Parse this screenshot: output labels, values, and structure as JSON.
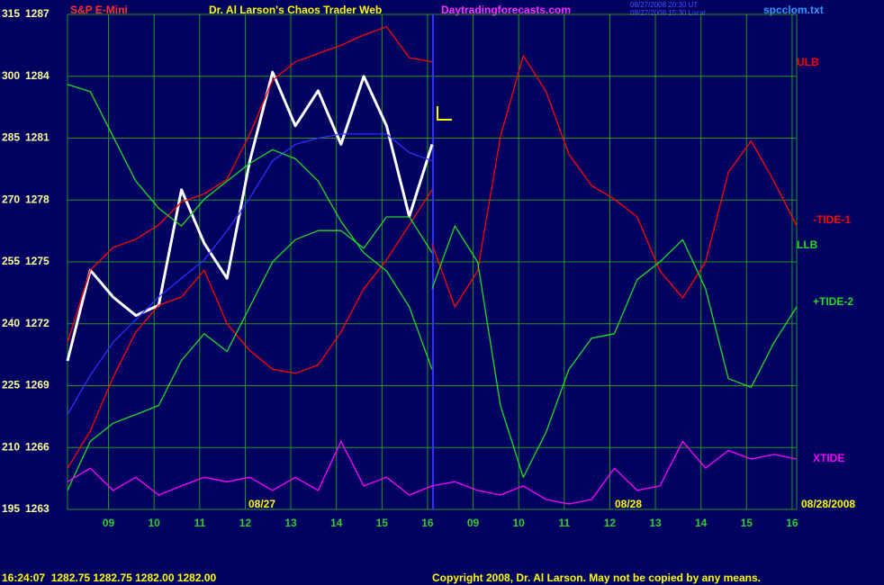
{
  "chart_data": {
    "type": "line",
    "title": "Dr. Al Larson's Chaos Trader Web",
    "instrument": "S&P E-Mini",
    "website": "Daytradingforecasts.com",
    "timestamps": [
      "08/27/2008 20:30 UT",
      "08/27/2008 15:30 Local"
    ],
    "data_file": "spcclom.txt",
    "annotations": [
      "08/27",
      "08/28",
      "08/28/2008"
    ],
    "quote_line": "16:24:07  1282.75 1282.75 1282.00 1282.00",
    "copyright": "Copyright 2008, Dr. Al Larson. May not be copied by any means.",
    "grid": true,
    "xlim": [
      -0.9,
      15.1
    ],
    "xticks": [
      {
        "value": 0,
        "label": "09"
      },
      {
        "value": 1,
        "label": "10"
      },
      {
        "value": 2,
        "label": "11"
      },
      {
        "value": 3,
        "label": "12"
      },
      {
        "value": 4,
        "label": "13"
      },
      {
        "value": 5,
        "label": "14"
      },
      {
        "value": 6,
        "label": "15"
      },
      {
        "value": 7,
        "label": "16"
      },
      {
        "value": 8,
        "label": "09"
      },
      {
        "value": 9,
        "label": "10"
      },
      {
        "value": 10,
        "label": "11"
      },
      {
        "value": 11,
        "label": "12"
      },
      {
        "value": 12,
        "label": "13"
      },
      {
        "value": 13,
        "label": "14"
      },
      {
        "value": 14,
        "label": "15"
      },
      {
        "value": 15,
        "label": "16"
      }
    ],
    "ylim": [
      195,
      315
    ],
    "yticks": [
      195,
      210,
      225,
      240,
      255,
      270,
      285,
      300,
      315
    ],
    "y2lim": [
      1263,
      1287
    ],
    "y2ticks": [
      1263,
      1266,
      1269,
      1272,
      1275,
      1278,
      1281,
      1284,
      1287
    ],
    "x": [
      -0.9,
      -0.4,
      0.1,
      0.6,
      1.1,
      1.6,
      2.1,
      2.6,
      3.1,
      3.6,
      4.1,
      4.6,
      5.1,
      5.6,
      6.1,
      6.6,
      7.1,
      7.6,
      8.1,
      8.6,
      9.1,
      9.6,
      10.1,
      10.6,
      11.1,
      11.6,
      12.1,
      12.6,
      13.1,
      13.6,
      14.1,
      14.6,
      15.1
    ],
    "series": [
      {
        "color": "#ffffff",
        "axis": "y2",
        "values": [
          1270.2,
          1274.6,
          1273.3,
          1272.4,
          1272.9,
          1278.5,
          1275.9,
          1274.2,
          1279.9,
          1284.2,
          1281.6,
          1283.3,
          1280.7,
          1284.0,
          1281.6,
          1277.2,
          1280.7,
          null,
          null,
          null,
          null,
          null,
          null,
          null,
          null,
          null,
          null,
          null,
          null,
          null,
          null,
          null,
          null
        ]
      },
      {
        "color": "#3030ff",
        "axis": "y2",
        "values": [
          1267.6,
          1269.5,
          1271.1,
          1272.2,
          1273.3,
          1274.2,
          1275.1,
          1276.5,
          1278.1,
          1279.9,
          1280.7,
          1281.0,
          1281.2,
          1281.2,
          1281.2,
          1280.3,
          1279.9,
          null,
          null,
          null,
          null,
          null,
          null,
          null,
          null,
          null,
          null,
          null,
          null,
          null,
          null,
          null,
          null
        ]
      },
      {
        "name": "ULB",
        "color": "#ff0000",
        "axis": "y2",
        "values": [
          1271.1,
          1274.6,
          1275.7,
          1276.1,
          1276.8,
          1277.9,
          1278.3,
          1279.0,
          1281.2,
          1283.8,
          1284.7,
          1285.1,
          1285.5,
          1286.0,
          1286.4,
          1284.9,
          1284.7,
          null,
          null,
          null,
          null,
          null,
          null,
          null,
          null,
          null,
          null,
          null,
          null,
          null,
          null,
          null,
          null
        ]
      },
      {
        "color": "#ff0000",
        "axis": "y2",
        "values": [
          1265.0,
          1266.8,
          1269.4,
          1271.6,
          1272.9,
          1273.3,
          1274.6,
          1272.0,
          1270.7,
          1269.8,
          1269.6,
          1270.0,
          1271.6,
          1273.7,
          1275.1,
          1276.8,
          1278.5,
          null,
          null,
          null,
          null,
          null,
          null,
          null,
          null,
          null,
          null,
          null,
          null,
          null,
          null,
          null,
          null
        ]
      },
      {
        "name": "-TIDE-1",
        "color": "#ff0000",
        "values": [
          null,
          null,
          null,
          null,
          null,
          null,
          null,
          null,
          null,
          null,
          null,
          null,
          null,
          null,
          null,
          null,
          259.3,
          244.1,
          252.8,
          285.4,
          305.0,
          296.3,
          281.1,
          273.5,
          270.2,
          265.9,
          252.8,
          246.3,
          255.0,
          276.7,
          284.3,
          274.6,
          263.7
        ]
      },
      {
        "name": "LLB",
        "color": "#22dd22",
        "values": [
          298.0,
          296.3,
          285.4,
          274.6,
          268.0,
          263.7,
          270.2,
          274.6,
          278.9,
          282.2,
          280.0,
          274.6,
          264.8,
          257.2,
          252.8,
          244.1,
          228.9,
          null,
          null,
          null,
          null,
          null,
          null,
          null,
          null,
          null,
          null,
          null,
          null,
          null,
          null,
          null,
          null
        ]
      },
      {
        "color": "#22dd22",
        "values": [
          199.6,
          211.5,
          215.9,
          218.0,
          220.2,
          231.1,
          237.6,
          233.3,
          244.1,
          255.0,
          260.4,
          262.6,
          262.6,
          258.3,
          265.9,
          265.9,
          257.2,
          null,
          null,
          null,
          null,
          null,
          null,
          null,
          null,
          null,
          null,
          null,
          null,
          null,
          null,
          null,
          null
        ]
      },
      {
        "name": "+TIDE-2",
        "color": "#22dd22",
        "values": [
          null,
          null,
          null,
          null,
          null,
          null,
          null,
          null,
          null,
          null,
          null,
          null,
          null,
          null,
          null,
          null,
          248.5,
          263.7,
          255.0,
          220.2,
          202.8,
          213.7,
          228.9,
          236.5,
          237.6,
          250.7,
          255.0,
          260.4,
          248.5,
          226.7,
          224.6,
          235.4,
          244.1
        ]
      },
      {
        "name": "XTIDE",
        "color": "#ff00ff",
        "values": [
          201.7,
          205.0,
          199.6,
          202.8,
          198.5,
          200.7,
          202.8,
          201.7,
          202.8,
          199.6,
          202.8,
          199.6,
          211.5,
          200.7,
          202.8,
          198.5,
          200.7,
          201.7,
          199.6,
          198.5,
          200.7,
          197.4,
          196.3,
          197.4,
          205.0,
          199.6,
          200.7,
          211.5,
          205.0,
          209.3,
          207.2,
          208.3,
          207.2
        ]
      }
    ]
  }
}
